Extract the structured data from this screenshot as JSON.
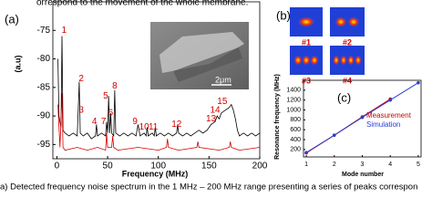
{
  "header_text": "orrespond to the movement of the whole membrane.",
  "caption": "a) Detected frequency noise spectrum in the 1 MHz – 200 MHz range presenting a series of peaks correspon",
  "inset": {
    "scale": "2μm"
  },
  "panel_b": {
    "label": "(b)",
    "modes": [
      "#1",
      "#2",
      "#3",
      "#4"
    ]
  },
  "chart_data": [
    {
      "type": "line",
      "panel_label": "(a)",
      "x_label": "Frequency (MHz)",
      "y_label": "(a.u)",
      "xlim": [
        -4,
        200
      ],
      "ylim": [
        -97.5,
        -70
      ],
      "xticks": [
        0,
        50,
        100,
        150,
        200
      ],
      "yticks": [
        -75,
        -80,
        -85,
        -90,
        -95
      ],
      "series": [
        {
          "color": "#000000",
          "x": [
            1,
            2,
            4,
            5,
            6,
            8,
            12,
            16,
            20,
            21,
            22,
            23,
            26,
            30,
            34,
            38,
            39,
            40,
            44,
            48,
            49,
            50,
            51,
            52,
            53,
            54,
            56,
            57,
            58,
            62,
            66,
            70,
            74,
            78,
            80,
            82,
            86,
            88,
            89,
            90,
            94,
            96,
            97,
            98,
            102,
            106,
            110,
            114,
            118,
            119,
            120,
            124,
            128,
            132,
            136,
            140,
            144,
            148,
            150,
            152,
            156,
            158,
            160,
            162,
            166,
            170,
            172,
            174,
            176,
            178,
            180,
            184,
            188,
            192,
            196,
            200
          ],
          "values": [
            -80,
            -90,
            -92,
            -76,
            -92.5,
            -93,
            -93.5,
            -93,
            -93.5,
            -89,
            -84,
            -93,
            -93.5,
            -93,
            -94,
            -93.5,
            -91.5,
            -93.5,
            -93,
            -93.5,
            -91,
            -93,
            -86.5,
            -93,
            -89.5,
            -93,
            -93.5,
            -85.5,
            -93,
            -93.5,
            -93,
            -93.5,
            -93,
            -93.5,
            -91.5,
            -93.5,
            -93,
            -93.5,
            -92,
            -93.5,
            -93,
            -93.5,
            -92,
            -93.5,
            -93,
            -93.5,
            -93,
            -93.5,
            -93,
            -91.5,
            -93,
            -93.5,
            -93,
            -93.5,
            -93,
            -92.5,
            -93,
            -92.5,
            -92,
            -91.5,
            -91,
            -90,
            -90.5,
            -89.5,
            -89,
            -88.5,
            -88,
            -89,
            -90.5,
            -92.5,
            -93.5,
            -93,
            -93.5,
            -93,
            -93.5,
            -93
          ]
        },
        {
          "color": "#d40000",
          "x": [
            1,
            3,
            5,
            6,
            8,
            20,
            30,
            40,
            48,
            49,
            50,
            54,
            55,
            56,
            60,
            80,
            100,
            108,
            109,
            110,
            120,
            138,
            139,
            140,
            160,
            170,
            171,
            172,
            180,
            200
          ],
          "values": [
            -88,
            -95.5,
            -86,
            -95.5,
            -96,
            -95.5,
            -96,
            -95.5,
            -96,
            -93,
            -95.5,
            -95.5,
            -93.5,
            -95.5,
            -96,
            -95.5,
            -96,
            -95.5,
            -94,
            -95.5,
            -96,
            -95.5,
            -94.5,
            -95.5,
            -96,
            -95.5,
            -94.5,
            -95.5,
            -96,
            -95.5
          ]
        }
      ],
      "annotation_color": "#d40000",
      "annotations": [
        {
          "text": "1",
          "x": 7,
          "y": -75
        },
        {
          "text": "2",
          "x": 24,
          "y": -83.5
        },
        {
          "text": "3",
          "x": 24,
          "y": -89
        },
        {
          "text": "4",
          "x": 37,
          "y": -91
        },
        {
          "text": "5",
          "x": 48,
          "y": -86.5
        },
        {
          "text": "6",
          "x": 53,
          "y": -89.5
        },
        {
          "text": "7",
          "x": 46,
          "y": -91
        },
        {
          "text": "8",
          "x": 57,
          "y": -84.8
        },
        {
          "text": "9",
          "x": 77,
          "y": -91
        },
        {
          "text": "10",
          "x": 86,
          "y": -92
        },
        {
          "text": "11",
          "x": 95,
          "y": -92
        },
        {
          "text": "12",
          "x": 118,
          "y": -91.5
        },
        {
          "text": "13",
          "x": 152,
          "y": -90.5
        },
        {
          "text": "14",
          "x": 156,
          "y": -89
        },
        {
          "text": "15",
          "x": 163,
          "y": -87.5
        }
      ]
    },
    {
      "type": "line",
      "panel_label": "(c)",
      "x_label": "Mode number",
      "y_label": "Resonance frequency (MHz)",
      "xlim": [
        0.9,
        5.1
      ],
      "ylim": [
        50,
        1600
      ],
      "xticks": [
        1,
        2,
        3,
        4,
        5
      ],
      "yticks": [
        200,
        400,
        600,
        800,
        1000,
        1200,
        1400
      ],
      "markers": true,
      "series": [
        {
          "name": "Measurement",
          "color": "#d40000",
          "x": [
            1,
            2,
            3,
            4
          ],
          "values": [
            130,
            490,
            860,
            1220
          ]
        },
        {
          "name": "Simulation",
          "color": "#2a3fd0",
          "x": [
            1,
            2,
            3,
            4,
            5
          ],
          "values": [
            140,
            490,
            850,
            1200,
            1550
          ]
        }
      ]
    }
  ]
}
